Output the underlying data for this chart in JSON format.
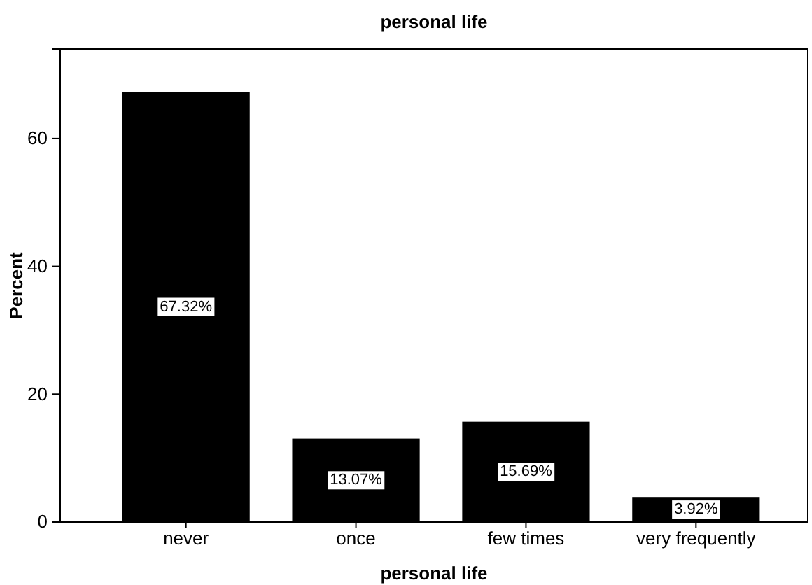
{
  "chart_data": {
    "type": "bar",
    "title": "personal life",
    "xlabel": "personal life",
    "ylabel": "Percent",
    "categories": [
      "never",
      "once",
      "few times",
      "very frequently"
    ],
    "values": [
      67.32,
      13.07,
      15.69,
      3.92
    ],
    "value_labels": [
      "67.32%",
      "13.07%",
      "15.69%",
      "3.92%"
    ],
    "color": "#000000",
    "ylim": [
      0,
      74
    ],
    "yticks": [
      0,
      20,
      40,
      60
    ],
    "grid": false
  }
}
